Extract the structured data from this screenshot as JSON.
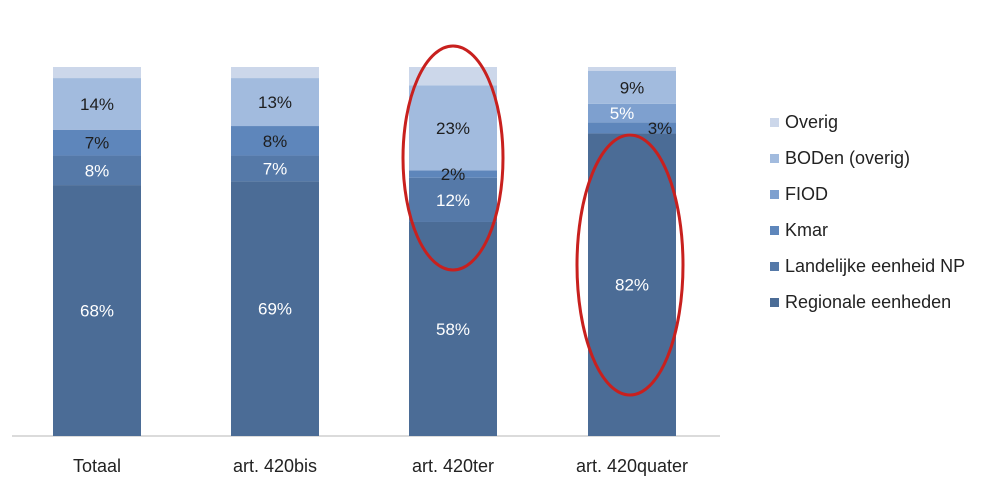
{
  "chart_data": {
    "type": "bar",
    "stacked": true,
    "categories": [
      "Totaal",
      "art. 420bis",
      "art. 420ter",
      "art. 420quater"
    ],
    "series": [
      {
        "name": "Regionale eenheden",
        "color": "#4b6c96",
        "values": [
          68,
          69,
          58,
          82
        ],
        "labels": [
          "68%",
          "69%",
          "58%",
          "82%"
        ]
      },
      {
        "name": "Landelijke eenheid NP",
        "color": "#5579a8",
        "values": [
          8,
          7,
          12,
          0
        ],
        "labels": [
          "8%",
          "7%",
          "12%",
          ""
        ]
      },
      {
        "name": "Kmar",
        "color": "#5e86bb",
        "values": [
          7,
          8,
          2,
          3
        ],
        "labels": [
          "7%",
          "8%",
          "2%",
          "3%"
        ]
      },
      {
        "name": "FIOD",
        "color": "#7ea0cf",
        "values": [
          0,
          0,
          0,
          5
        ],
        "labels": [
          "",
          "",
          "",
          "5%"
        ]
      },
      {
        "name": "BODen (overig)",
        "color": "#a2bbde",
        "values": [
          14,
          13,
          23,
          9
        ],
        "labels": [
          "14%",
          "13%",
          "23%",
          "9%"
        ]
      },
      {
        "name": "Overig",
        "color": "#ccd7ea",
        "values": [
          3,
          3,
          5,
          1
        ],
        "labels": [
          "",
          "",
          "",
          ""
        ]
      }
    ],
    "legend_order": [
      "Overig",
      "BODen (overig)",
      "FIOD",
      "Kmar",
      "Landelijke eenheid NP",
      "Regionale eenheden"
    ],
    "legend_position": "right",
    "ylim": [
      0,
      100
    ],
    "grid": false,
    "highlight_color": "#c8201e"
  }
}
